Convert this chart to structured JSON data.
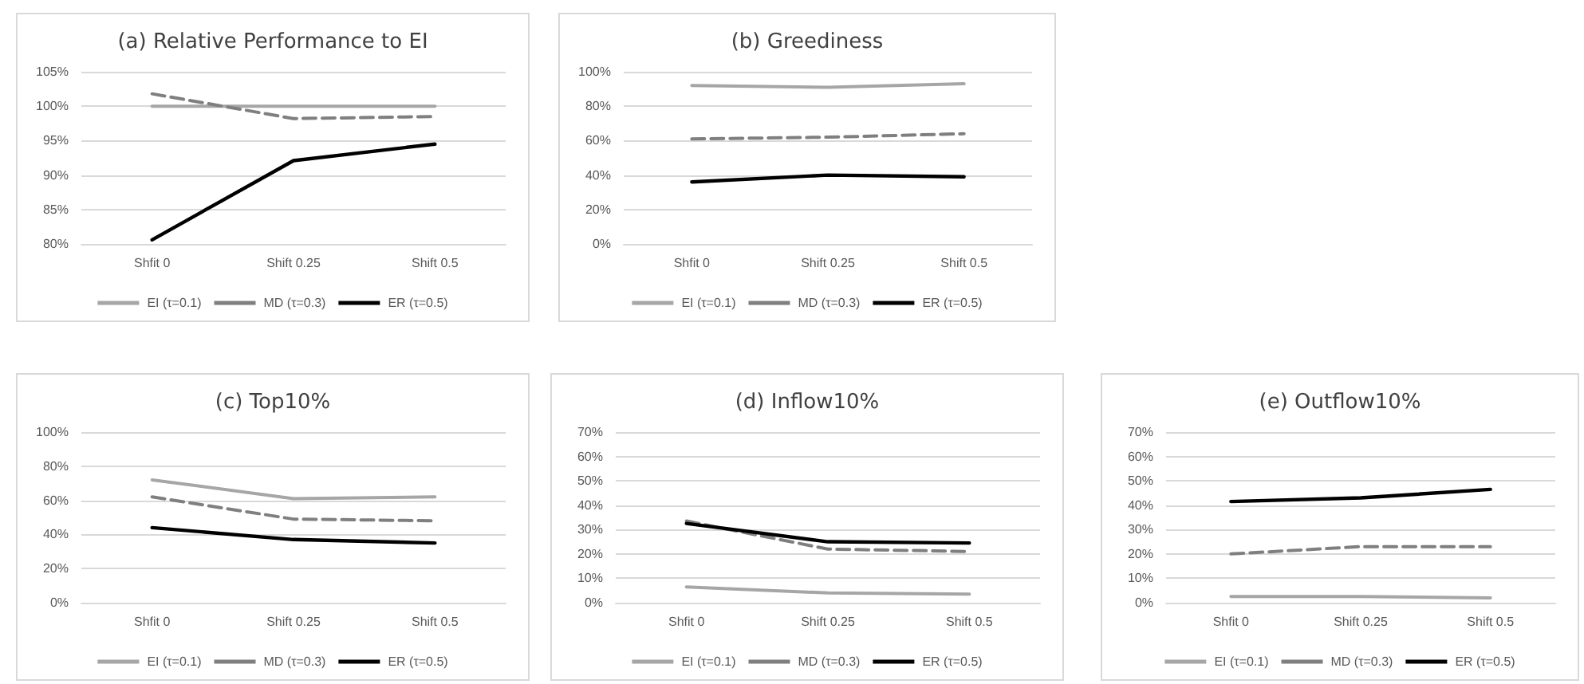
{
  "chart_data": [
    {
      "type": "line",
      "title": "(a) Relative Performance to EI",
      "categories": [
        "Shfit 0",
        "Shift 0.25",
        "Shift 0.5"
      ],
      "ylim": [
        80,
        105
      ],
      "yticks": [
        {
          "value": 80,
          "label": "80%"
        },
        {
          "value": 85,
          "label": "85%"
        },
        {
          "value": 90,
          "label": "90%"
        },
        {
          "value": 95,
          "label": "95%"
        },
        {
          "value": 100,
          "label": "100%"
        },
        {
          "value": 105,
          "label": "105%"
        }
      ],
      "grid": "y",
      "legend": "bottom",
      "marker": "none",
      "series": [
        {
          "name": "EI (τ=0.1)",
          "color": "#a6a6a6",
          "line_style": "solid",
          "values": [
            100,
            100,
            100
          ]
        },
        {
          "name": "MD (τ=0.3)",
          "color": "#7f7f7f",
          "line_style": "dashed",
          "values": [
            101.8,
            98.2,
            98.5
          ]
        },
        {
          "name": "ER (τ=0.5)",
          "color": "#000000",
          "line_style": "solid",
          "values": [
            80.6,
            92.1,
            94.5
          ]
        }
      ]
    },
    {
      "type": "line",
      "title": "(b) Greediness",
      "categories": [
        "Shfit 0",
        "Shift 0.25",
        "Shift 0.5"
      ],
      "ylim": [
        0,
        100
      ],
      "yticks": [
        {
          "value": 0,
          "label": "0%"
        },
        {
          "value": 20,
          "label": "20%"
        },
        {
          "value": 40,
          "label": "40%"
        },
        {
          "value": 60,
          "label": "60%"
        },
        {
          "value": 80,
          "label": "80%"
        },
        {
          "value": 100,
          "label": "100%"
        }
      ],
      "grid": "y",
      "legend": "bottom",
      "marker": "none",
      "series": [
        {
          "name": "EI (τ=0.1)",
          "color": "#a6a6a6",
          "line_style": "solid",
          "values": [
            92,
            91,
            93
          ]
        },
        {
          "name": "MD (τ=0.3)",
          "color": "#7f7f7f",
          "line_style": "dashed",
          "values": [
            61,
            62,
            64
          ]
        },
        {
          "name": "ER (τ=0.5)",
          "color": "#000000",
          "line_style": "solid",
          "values": [
            36,
            40,
            39
          ]
        }
      ]
    },
    {
      "type": "line",
      "title": "(c) Top10%",
      "categories": [
        "Shfit 0",
        "Shift 0.25",
        "Shift 0.5"
      ],
      "ylim": [
        0,
        100
      ],
      "yticks": [
        {
          "value": 0,
          "label": "0%"
        },
        {
          "value": 20,
          "label": "20%"
        },
        {
          "value": 40,
          "label": "40%"
        },
        {
          "value": 60,
          "label": "60%"
        },
        {
          "value": 80,
          "label": "80%"
        },
        {
          "value": 100,
          "label": "100%"
        }
      ],
      "grid": "y",
      "legend": "bottom",
      "marker": "none",
      "series": [
        {
          "name": "EI (τ=0.1)",
          "color": "#a6a6a6",
          "line_style": "solid",
          "values": [
            72,
            61,
            62
          ]
        },
        {
          "name": "MD (τ=0.3)",
          "color": "#7f7f7f",
          "line_style": "dashed",
          "values": [
            62,
            49,
            48
          ]
        },
        {
          "name": "ER (τ=0.5)",
          "color": "#000000",
          "line_style": "solid",
          "values": [
            44,
            37,
            35
          ]
        }
      ]
    },
    {
      "type": "line",
      "title": "(d) Inflow10%",
      "categories": [
        "Shfit 0",
        "Shift 0.25",
        "Shift 0.5"
      ],
      "ylim": [
        0,
        70
      ],
      "yticks": [
        {
          "value": 0,
          "label": "0%"
        },
        {
          "value": 10,
          "label": "10%"
        },
        {
          "value": 20,
          "label": "20%"
        },
        {
          "value": 30,
          "label": "30%"
        },
        {
          "value": 40,
          "label": "40%"
        },
        {
          "value": 50,
          "label": "50%"
        },
        {
          "value": 60,
          "label": "60%"
        },
        {
          "value": 70,
          "label": "70%"
        }
      ],
      "grid": "y",
      "legend": "bottom",
      "marker": "none",
      "series": [
        {
          "name": "EI (τ=0.1)",
          "color": "#a6a6a6",
          "line_style": "solid",
          "values": [
            6.5,
            4,
            3.5
          ]
        },
        {
          "name": "MD (τ=0.3)",
          "color": "#7f7f7f",
          "line_style": "dashed",
          "values": [
            33.5,
            22,
            21
          ]
        },
        {
          "name": "ER (τ=0.5)",
          "color": "#000000",
          "line_style": "solid",
          "values": [
            32.5,
            25,
            24.5
          ]
        }
      ]
    },
    {
      "type": "line",
      "title": "(e) Outflow10%",
      "categories": [
        "Shfit 0",
        "Shift 0.25",
        "Shift 0.5"
      ],
      "ylim": [
        0,
        70
      ],
      "yticks": [
        {
          "value": 0,
          "label": "0%"
        },
        {
          "value": 10,
          "label": "10%"
        },
        {
          "value": 20,
          "label": "20%"
        },
        {
          "value": 30,
          "label": "30%"
        },
        {
          "value": 40,
          "label": "40%"
        },
        {
          "value": 50,
          "label": "50%"
        },
        {
          "value": 60,
          "label": "60%"
        },
        {
          "value": 70,
          "label": "70%"
        }
      ],
      "grid": "y",
      "legend": "bottom",
      "marker": "none",
      "series": [
        {
          "name": "EI (τ=0.1)",
          "color": "#a6a6a6",
          "line_style": "solid",
          "values": [
            2.5,
            2.5,
            2
          ]
        },
        {
          "name": "MD (τ=0.3)",
          "color": "#7f7f7f",
          "line_style": "dashed",
          "values": [
            20,
            23,
            23
          ]
        },
        {
          "name": "ER (τ=0.5)",
          "color": "#000000",
          "line_style": "solid",
          "values": [
            41.5,
            43,
            46.5
          ]
        }
      ]
    }
  ]
}
